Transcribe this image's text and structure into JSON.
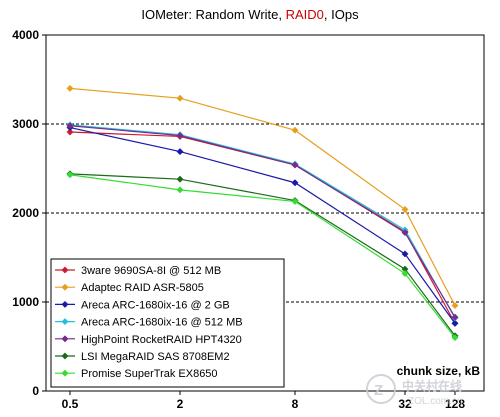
{
  "chart_data": {
    "type": "line",
    "title_parts": [
      {
        "text": "IOMeter: Random Write, ",
        "color": "#000000"
      },
      {
        "text": "RAID0",
        "color": "#cc0000"
      },
      {
        "text": ", IOps",
        "color": "#000000"
      }
    ],
    "x": [
      "0.5",
      "2",
      "8",
      "32",
      "128"
    ],
    "xlabel": "chunk size, kB",
    "ylabel": "",
    "ylim": [
      0,
      4000
    ],
    "yticks": [
      0,
      1000,
      2000,
      3000,
      4000
    ],
    "grid": "horizontal dashed",
    "legend_position": "bottom-left",
    "series": [
      {
        "name": "3ware 9690SA-8I @ 512 MB",
        "color": "#cc1a33",
        "values": [
          2910,
          2860,
          2540,
          1790,
          760
        ]
      },
      {
        "name": "Adaptec RAID ASR-5805",
        "color": "#e6a020",
        "values": [
          3400,
          3290,
          2930,
          2040,
          960
        ]
      },
      {
        "name": "Areca ARC-1680ix-16 @ 2 GB",
        "color": "#1a1aa6",
        "values": [
          2960,
          2690,
          2340,
          1540,
          760
        ]
      },
      {
        "name": "Areca ARC-1680ix-16 @ 512 MB",
        "color": "#22c0d8",
        "values": [
          2990,
          2880,
          2550,
          1810,
          820
        ]
      },
      {
        "name": "HighPoint RocketRAID HPT4320",
        "color": "#7a2a8a",
        "values": [
          2980,
          2870,
          2540,
          1780,
          830
        ]
      },
      {
        "name": "LSI MegaRAID SAS 8708EM2",
        "color": "#1a6a1a",
        "values": [
          2440,
          2380,
          2140,
          1370,
          620
        ]
      },
      {
        "name": "Promise SuperTrak EX8650",
        "color": "#33dd33",
        "values": [
          2430,
          2260,
          2130,
          1320,
          600
        ]
      }
    ]
  },
  "watermark": {
    "text_cn": "中关村在线",
    "text_en": "ZOL.com.cn"
  }
}
